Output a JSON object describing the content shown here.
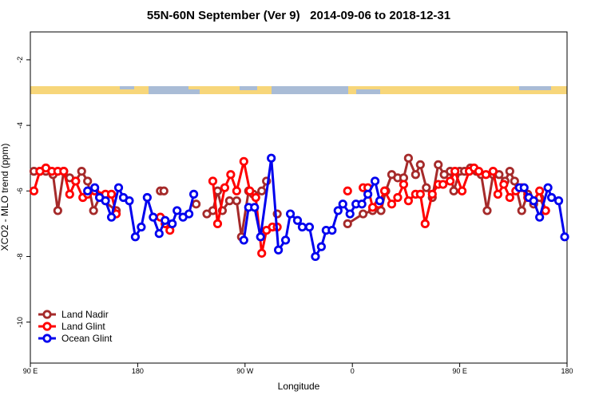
{
  "chart_data": {
    "type": "line",
    "title": "55N-60N September (Ver 9)   2014-09-06 to 2018-12-31",
    "x_label": "Longitude",
    "y_label": "XCO2 - MLO trend (ppm)",
    "xlim": [
      90,
      540
    ],
    "ylim": [
      -11.25,
      -1.15
    ],
    "xticks": [
      {
        "value": 90,
        "label": "90 E"
      },
      180,
      {
        "value": 270,
        "label": "90 W"
      },
      {
        "value": 360,
        "label": "0"
      },
      {
        "value": 450,
        "label": "90 E"
      },
      {
        "value": 540,
        "label": "180"
      }
    ],
    "yticks": [
      -2,
      -4,
      -6,
      -8,
      -10
    ],
    "legend": "bottom-left",
    "series": [
      {
        "name": "Land Nadir",
        "color": "#a52a2a",
        "x": [
          93,
          98,
          103,
          109,
          113,
          118,
          123,
          128,
          133,
          138,
          143,
          148,
          162,
          180,
          199,
          202,
          215,
          229,
          232,
          238,
          243,
          247,
          251,
          257,
          263,
          267,
          273,
          277,
          284,
          288,
          292,
          297,
          320,
          356,
          369,
          377,
          384,
          388,
          393,
          398,
          403,
          407,
          413,
          417,
          422,
          427,
          432,
          437,
          442,
          445,
          450,
          454,
          459,
          464,
          468,
          473,
          478,
          483,
          488,
          492,
          496,
          502,
          507,
          512,
          517,
          522
        ],
        "values": [
          -5.4,
          -5.4,
          -5.4,
          -5.5,
          -6.6,
          -5.4,
          -5.6,
          -5.7,
          -5.4,
          -5.7,
          -6.6,
          -6.2,
          -6.6,
          null,
          -6.0,
          -6.0,
          null,
          -6.4,
          null,
          -6.7,
          -6.6,
          -6.0,
          -6.6,
          -6.3,
          -6.3,
          -7.4,
          -6.0,
          -6.1,
          -6.0,
          -5.7,
          null,
          -6.7,
          null,
          -7.0,
          -6.7,
          -6.6,
          -6.6,
          -6.0,
          -5.5,
          -5.6,
          -5.6,
          -5.0,
          -5.5,
          -5.2,
          -5.9,
          -6.2,
          -5.2,
          -5.5,
          -5.4,
          -6.0,
          -5.4,
          -5.4,
          -5.3,
          -5.4,
          -5.5,
          -6.6,
          -5.5,
          -5.5,
          -5.7,
          -5.4,
          -5.7,
          -6.6,
          -6.1,
          -6.4,
          -6.2,
          -6.6
        ]
      },
      {
        "name": "Land Glint",
        "color": "#ff0000",
        "x": [
          93,
          98,
          103,
          108,
          113,
          118,
          123,
          128,
          134,
          138,
          144,
          153,
          158,
          162,
          180,
          199,
          203,
          207,
          225,
          243,
          247,
          253,
          258,
          263,
          269,
          274,
          279,
          284,
          288,
          293,
          297,
          320,
          356,
          362,
          369,
          373,
          377,
          382,
          387,
          393,
          398,
          403,
          407,
          413,
          417,
          421,
          427,
          432,
          436,
          442,
          446,
          452,
          458,
          462,
          466,
          472,
          478,
          482,
          487,
          492,
          497,
          502,
          507,
          512,
          517,
          522
        ],
        "values": [
          -6.0,
          -5.4,
          -5.3,
          -5.4,
          -5.4,
          -5.4,
          -6.1,
          -5.7,
          -6.2,
          -6.1,
          -6.0,
          -6.1,
          -6.1,
          -6.7,
          null,
          -6.8,
          -7.0,
          -7.2,
          null,
          -5.7,
          -7.0,
          -5.9,
          -5.5,
          -6.0,
          -5.1,
          -6.0,
          -6.2,
          -7.9,
          -7.2,
          -7.1,
          -7.1,
          null,
          -6.0,
          null,
          -5.9,
          -5.9,
          -6.5,
          -6.4,
          -6.0,
          -6.4,
          -6.2,
          -5.8,
          -6.3,
          -6.1,
          -6.1,
          -7.0,
          -6.1,
          -5.8,
          -5.8,
          -5.7,
          -5.4,
          -6.0,
          -5.4,
          -5.3,
          -5.4,
          -5.5,
          -5.4,
          -6.1,
          -5.8,
          -6.2,
          -6.0,
          -5.9,
          -6.2,
          -6.3,
          -6.0,
          -6.6
        ]
      },
      {
        "name": "Ocean Glint",
        "color": "#0000ee",
        "x": [
          138,
          144,
          148,
          153,
          158,
          164,
          168,
          173,
          178,
          183,
          188,
          193,
          198,
          203,
          209,
          213,
          218,
          223,
          227,
          250,
          269,
          273,
          278,
          283,
          292,
          298,
          304,
          308,
          314,
          318,
          324,
          329,
          334,
          338,
          343,
          348,
          352,
          358,
          363,
          368,
          373,
          379,
          383,
          450,
          500,
          504,
          508,
          512,
          517,
          524,
          527,
          533,
          538
        ],
        "values": [
          -6.0,
          -5.9,
          -6.2,
          -6.3,
          -6.8,
          -5.9,
          -6.2,
          -6.3,
          -7.4,
          -7.1,
          -6.2,
          -6.8,
          -7.3,
          -6.9,
          -7.0,
          -6.6,
          -6.8,
          -6.7,
          -6.1,
          null,
          -7.5,
          -6.5,
          -6.5,
          -7.4,
          -5.0,
          -7.8,
          -7.5,
          -6.7,
          -6.9,
          -7.1,
          -7.1,
          -8.0,
          -7.7,
          -7.2,
          -7.2,
          -6.6,
          -6.4,
          -6.7,
          -6.4,
          -6.4,
          -6.1,
          -5.7,
          -6.3,
          null,
          -5.9,
          -5.9,
          -6.2,
          -6.3,
          -6.8,
          -5.9,
          -6.2,
          -6.3,
          -7.4
        ]
      }
    ]
  }
}
